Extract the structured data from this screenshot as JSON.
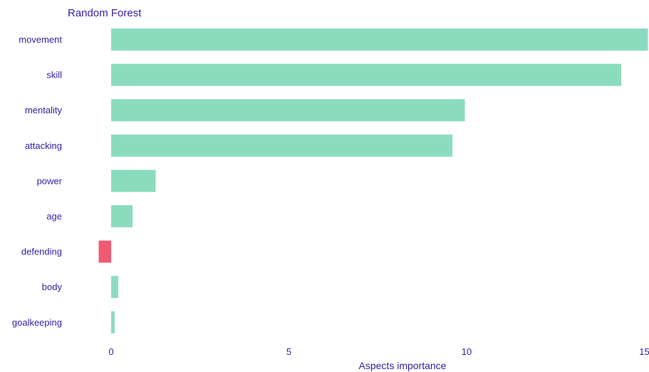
{
  "chart_data": {
    "type": "bar",
    "orientation": "horizontal",
    "title": "Random Forest",
    "xlabel": "Aspects importance",
    "ylabel": "",
    "categories": [
      "movement",
      "skill",
      "mentality",
      "attacking",
      "power",
      "age",
      "defending",
      "body",
      "goalkeeping"
    ],
    "values": [
      15.1,
      14.35,
      9.95,
      9.6,
      1.25,
      0.6,
      -0.35,
      0.2,
      0.1
    ],
    "xlim": [
      -0.5,
      15.1
    ],
    "xticks": [
      0,
      5,
      10,
      15
    ],
    "grid": false,
    "legend": "none",
    "colors": {
      "positive": "#8bdcbe",
      "negative": "#f05a71",
      "text": "#371ea3"
    }
  }
}
